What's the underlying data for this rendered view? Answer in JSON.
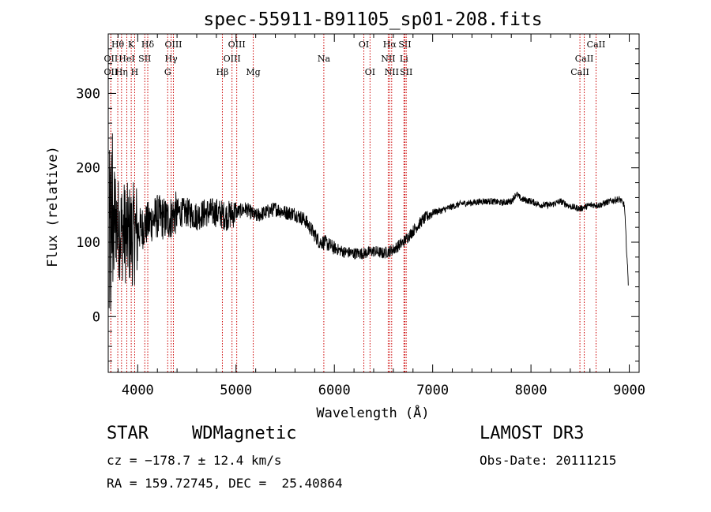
{
  "chart_data": {
    "type": "line",
    "title": "spec-55911-B91105_sp01-208.fits",
    "xlabel": "Wavelength (Å)",
    "ylabel": "Flux (relative)",
    "xlim": [
      3700,
      9100
    ],
    "ylim": [
      -75,
      380
    ],
    "xticks": [
      4000,
      5000,
      6000,
      7000,
      8000,
      9000
    ],
    "yticks": [
      0,
      100,
      200,
      300
    ],
    "series": [
      {
        "name": "flux",
        "x": [
          3700,
          3750,
          3800,
          3850,
          3900,
          3950,
          4000,
          4100,
          4200,
          4300,
          4400,
          4500,
          4600,
          4700,
          4800,
          4900,
          5000,
          5100,
          5200,
          5300,
          5400,
          5500,
          5600,
          5700,
          5750,
          5800,
          5850,
          5900,
          6000,
          6100,
          6200,
          6300,
          6400,
          6500,
          6600,
          6700,
          6800,
          6900,
          7000,
          7100,
          7200,
          7300,
          7400,
          7500,
          7600,
          7700,
          7800,
          7850,
          7900,
          8000,
          8100,
          8200,
          8300,
          8400,
          8500,
          8600,
          8700,
          8800,
          8900,
          8950,
          8990
        ],
        "y": [
          50,
          150,
          120,
          115,
          110,
          110,
          115,
          125,
          135,
          130,
          140,
          140,
          135,
          140,
          140,
          135,
          140,
          145,
          135,
          140,
          145,
          140,
          138,
          130,
          120,
          110,
          100,
          100,
          92,
          87,
          85,
          85,
          88,
          85,
          90,
          100,
          115,
          130,
          140,
          143,
          148,
          152,
          153,
          155,
          155,
          153,
          155,
          165,
          158,
          155,
          150,
          150,
          155,
          148,
          145,
          150,
          150,
          155,
          158,
          150,
          45
        ]
      }
    ],
    "noise_amplitude": [
      {
        "from": 3700,
        "to": 4000,
        "amp": 140
      },
      {
        "from": 4000,
        "to": 4400,
        "amp": 60
      },
      {
        "from": 4400,
        "to": 5000,
        "amp": 40
      },
      {
        "from": 5000,
        "to": 6000,
        "amp": 20
      },
      {
        "from": 6000,
        "to": 7000,
        "amp": 16
      },
      {
        "from": 7000,
        "to": 9000,
        "amp": 9
      }
    ],
    "line_markers": [
      {
        "label": "Hθ",
        "x": 3797,
        "row": 0
      },
      {
        "label": "K",
        "x": 3934,
        "row": 0
      },
      {
        "label": "Hδ",
        "x": 4102,
        "row": 0
      },
      {
        "label": "OIII",
        "x": 4363,
        "row": 0
      },
      {
        "label": "OIII",
        "x": 5007,
        "row": 0
      },
      {
        "label": "OI",
        "x": 6300,
        "row": 0
      },
      {
        "label": "Hα",
        "x": 6563,
        "row": 0
      },
      {
        "label": "SII",
        "x": 6717,
        "row": 0
      },
      {
        "label": "CaII",
        "x": 8662,
        "row": 0
      },
      {
        "label": "OII",
        "x": 3727,
        "row": 1
      },
      {
        "label": "HeI",
        "x": 3889,
        "row": 1
      },
      {
        "label": "SII",
        "x": 4072,
        "row": 1
      },
      {
        "label": "Hγ",
        "x": 4340,
        "row": 1
      },
      {
        "label": "OIII",
        "x": 4959,
        "row": 1
      },
      {
        "label": "Na",
        "x": 5893,
        "row": 1
      },
      {
        "label": "NII",
        "x": 6548,
        "row": 1
      },
      {
        "label": "Li",
        "x": 6708,
        "row": 1
      },
      {
        "label": "CaII",
        "x": 8542,
        "row": 1
      },
      {
        "label": "OII",
        "x": 3727,
        "row": 2
      },
      {
        "label": "Hη",
        "x": 3835,
        "row": 2
      },
      {
        "label": "H",
        "x": 3969,
        "row": 2
      },
      {
        "label": "G",
        "x": 4305,
        "row": 2
      },
      {
        "label": "Hβ",
        "x": 4861,
        "row": 2
      },
      {
        "label": "Mg",
        "x": 5175,
        "row": 2
      },
      {
        "label": "OI",
        "x": 6363,
        "row": 2
      },
      {
        "label": "NII",
        "x": 6583,
        "row": 2
      },
      {
        "label": "SII",
        "x": 6731,
        "row": 2
      },
      {
        "label": "CaII",
        "x": 8498,
        "row": 2
      }
    ],
    "marker_color": "#cc0000"
  },
  "info": {
    "obj_type": "STAR",
    "subclass": "WDMagnetic",
    "survey": "LAMOST DR3",
    "cz": "cz = −178.7 ± 12.4 km/s",
    "obs_date": "Obs-Date: 20111215",
    "coords": "RA = 159.72745, DEC =  25.40864"
  }
}
